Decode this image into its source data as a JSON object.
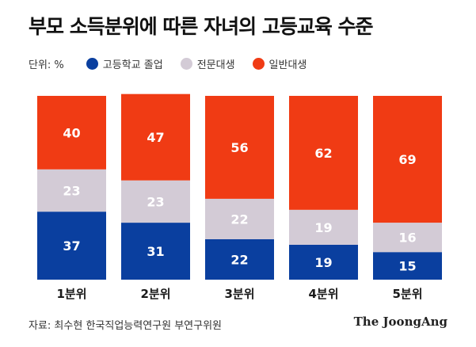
{
  "title": "부모 소득분위에 따른 자녀의 고등교육 수준",
  "unit_label": "단위: %",
  "source": "자료: 최수현 한국직업능력연구원 부연구위원",
  "logo": "The JoongAng",
  "colors": {
    "high_school": "#0a3f9f",
    "college": "#d3cbd6",
    "university": "#f03b14"
  },
  "chart_data": {
    "type": "bar",
    "stacked": true,
    "normalized": true,
    "categories": [
      "1분위",
      "2분위",
      "3분위",
      "4분위",
      "5분위"
    ],
    "series": [
      {
        "name": "고등학교 졸업",
        "color": "#0a3f9f",
        "values": [
          37,
          31,
          22,
          19,
          15
        ]
      },
      {
        "name": "전문대생",
        "color": "#d3cbd6",
        "values": [
          23,
          23,
          22,
          19,
          16
        ]
      },
      {
        "name": "일반대생",
        "color": "#f03b14",
        "values": [
          40,
          47,
          56,
          62,
          69
        ]
      }
    ],
    "ylim": [
      0,
      100
    ],
    "grid": false,
    "legend_position": "top-left"
  }
}
